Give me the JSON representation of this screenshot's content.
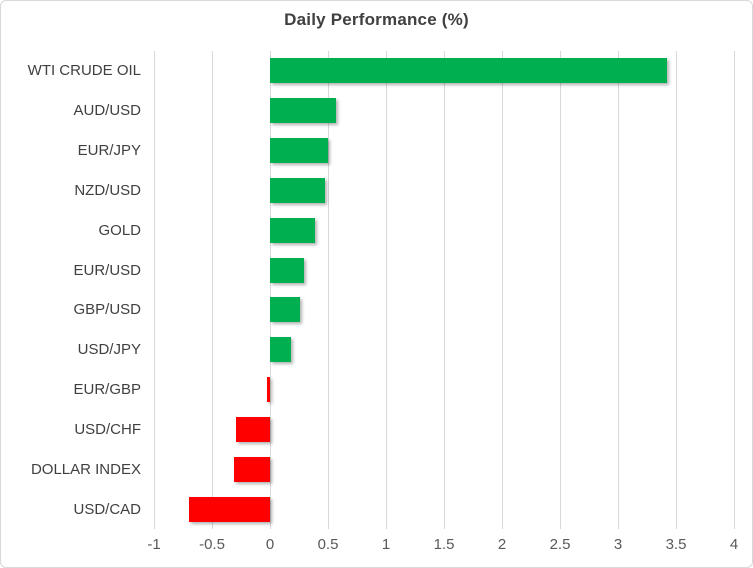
{
  "chart_data": {
    "type": "bar",
    "orientation": "horizontal",
    "title": "Daily Performance (%)",
    "categories": [
      "WTI CRUDE OIL",
      "AUD/USD",
      "EUR/JPY",
      "NZD/USD",
      "GOLD",
      "EUR/USD",
      "GBP/USD",
      "USD/JPY",
      "EUR/GBP",
      "USD/CHF",
      "DOLLAR INDEX",
      "USD/CAD"
    ],
    "values": [
      3.42,
      0.57,
      0.5,
      0.47,
      0.39,
      0.29,
      0.26,
      0.18,
      -0.03,
      -0.29,
      -0.31,
      -0.7
    ],
    "xlim": [
      -1,
      4
    ],
    "x_ticks": [
      -1,
      -0.5,
      0,
      0.5,
      1,
      1.5,
      2,
      2.5,
      3,
      3.5,
      4
    ],
    "grid": true,
    "legend": "none",
    "colors": {
      "positive": "#00B050",
      "negative": "#FF0000",
      "gridline": "#D9D9D9",
      "title": "#404040",
      "category_label": "#404040",
      "tick_label": "#595959"
    }
  }
}
